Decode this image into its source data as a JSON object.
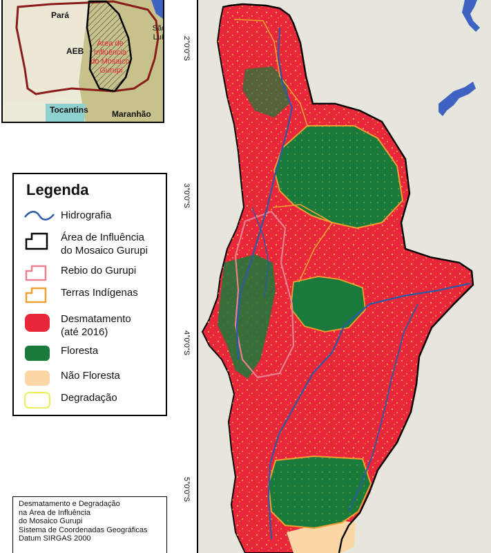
{
  "inset_map": {
    "labels": {
      "para": "Pará",
      "aeb": "AEB",
      "area": [
        "Área de",
        "Influência",
        "do Mosaico",
        "Gurupi"
      ],
      "sao_luis": [
        "São",
        "Luís"
      ],
      "tocantins": "Tocantins",
      "maranhao": "Maranhão"
    }
  },
  "legend": {
    "title": "Legenda",
    "items": [
      {
        "label": "Hidrografia",
        "symbol": "line",
        "color": "#2b5aa8"
      },
      {
        "label": "Área de Influência\ndo Mosaico Gurupi",
        "symbol": "outline",
        "color": "#000000"
      },
      {
        "label": "Rebio do Gurupi",
        "symbol": "outline",
        "color": "#e8808f"
      },
      {
        "label": "Terras Indígenas",
        "symbol": "outline",
        "color": "#f0a030"
      },
      {
        "label": "Desmatamento\n(até 2016)",
        "symbol": "fill",
        "color": "#e8283a"
      },
      {
        "label": "Floresta",
        "symbol": "fill",
        "color": "#1a7a3c"
      },
      {
        "label": "Não Floresta",
        "symbol": "fill",
        "color": "#fbd7a6"
      },
      {
        "label": "Degradação",
        "symbol": "outline",
        "color": "#eef05a"
      }
    ]
  },
  "info": {
    "lines": [
      "Desmatamento e Degradação",
      "na Área de Influência",
      "do Mosaico Gurupi",
      "Sistema de Coordenadas Geográficas",
      "Datum SIRGAS 2000"
    ]
  },
  "map": {
    "lat_ticks": [
      "2°0'0\"S",
      "3°0'0\"S",
      "4°0'0\"S",
      "5°0'0\"S"
    ],
    "colors": {
      "background": "#e6e6dc",
      "deforestation": "#e8283a",
      "forest": "#1a7a3c",
      "water": "#3f63c3",
      "degradation": "#eef05a"
    }
  }
}
